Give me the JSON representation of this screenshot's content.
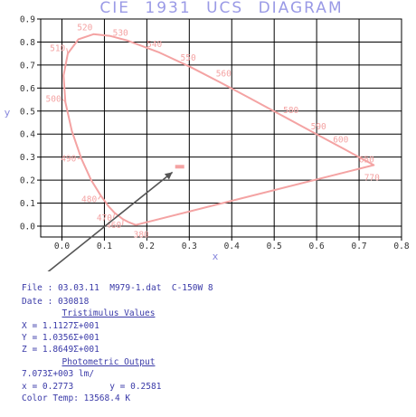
{
  "chart_data": {
    "type": "scatter",
    "title": "CIE  1931  UCS  DIAGRAM",
    "xlabel": "x",
    "ylabel": "y",
    "xlim": [
      -0.05,
      0.8
    ],
    "ylim": [
      -0.05,
      0.9
    ],
    "x_ticks": [
      "0.0",
      "0.1",
      "0.2",
      "0.3",
      "0.4",
      "0.5",
      "0.6",
      "0.7",
      "0.8"
    ],
    "y_ticks": [
      "0.0",
      "0.1",
      "0.2",
      "0.3",
      "0.4",
      "0.5",
      "0.6",
      "0.7",
      "0.8",
      "0.9"
    ],
    "grid": true,
    "colors": {
      "locus": "#f4a3a3",
      "axis_text": "#8888dd",
      "grid": "#000000",
      "arrow": "#555555",
      "point": "#f4a3a3"
    },
    "spectral_locus": [
      {
        "nm": 380,
        "x": 0.1741,
        "y": 0.005
      },
      {
        "nm": 430,
        "x": 0.1703,
        "y": 0.0076
      },
      {
        "nm": 450,
        "x": 0.1566,
        "y": 0.0177
      },
      {
        "nm": 460,
        "x": 0.144,
        "y": 0.0297
      },
      {
        "nm": 470,
        "x": 0.1241,
        "y": 0.0578
      },
      {
        "nm": 475,
        "x": 0.1096,
        "y": 0.0868
      },
      {
        "nm": 480,
        "x": 0.0913,
        "y": 0.1327
      },
      {
        "nm": 485,
        "x": 0.0687,
        "y": 0.2007
      },
      {
        "nm": 490,
        "x": 0.0454,
        "y": 0.295
      },
      {
        "nm": 495,
        "x": 0.0235,
        "y": 0.4127
      },
      {
        "nm": 500,
        "x": 0.0082,
        "y": 0.5384
      },
      {
        "nm": 505,
        "x": 0.0039,
        "y": 0.6548
      },
      {
        "nm": 510,
        "x": 0.0139,
        "y": 0.7502
      },
      {
        "nm": 515,
        "x": 0.0389,
        "y": 0.812
      },
      {
        "nm": 520,
        "x": 0.0743,
        "y": 0.8338
      },
      {
        "nm": 525,
        "x": 0.1142,
        "y": 0.8262
      },
      {
        "nm": 530,
        "x": 0.1547,
        "y": 0.8059
      },
      {
        "nm": 540,
        "x": 0.2296,
        "y": 0.7543
      },
      {
        "nm": 550,
        "x": 0.3016,
        "y": 0.6923
      },
      {
        "nm": 560,
        "x": 0.3731,
        "y": 0.6245
      },
      {
        "nm": 570,
        "x": 0.4441,
        "y": 0.5547
      },
      {
        "nm": 580,
        "x": 0.5125,
        "y": 0.4866
      },
      {
        "nm": 590,
        "x": 0.5752,
        "y": 0.4242
      },
      {
        "nm": 600,
        "x": 0.627,
        "y": 0.3725
      },
      {
        "nm": 610,
        "x": 0.6658,
        "y": 0.334
      },
      {
        "nm": 620,
        "x": 0.6915,
        "y": 0.3083
      },
      {
        "nm": 630,
        "x": 0.7079,
        "y": 0.292
      },
      {
        "nm": 650,
        "x": 0.726,
        "y": 0.274
      },
      {
        "nm": 700,
        "x": 0.7347,
        "y": 0.2653
      },
      {
        "nm": 770,
        "x": 0.7347,
        "y": 0.2653
      }
    ],
    "wavelength_labels": [
      {
        "text": "380",
        "nm": 380
      },
      {
        "text": "460",
        "nm": 460
      },
      {
        "text": "470",
        "nm": 470
      },
      {
        "text": "480",
        "nm": 480
      },
      {
        "text": "490",
        "nm": 490
      },
      {
        "text": "500",
        "nm": 500
      },
      {
        "text": "510",
        "nm": 510
      },
      {
        "text": "520",
        "nm": 520
      },
      {
        "text": "530",
        "nm": 530
      },
      {
        "text": "540",
        "nm": 540
      },
      {
        "text": "550",
        "nm": 550
      },
      {
        "text": "560",
        "nm": 560
      },
      {
        "text": "580",
        "nm": 580
      },
      {
        "text": "590",
        "nm": 590
      },
      {
        "text": "600",
        "nm": 600
      },
      {
        "text": "650",
        "nm": 650
      },
      {
        "text": "770",
        "nm": 770
      }
    ],
    "measured_point": {
      "x": 0.2773,
      "y": 0.2581
    }
  },
  "info": {
    "file_line": "File : 03.03.11  M979-1.dat  C-150W 8",
    "date_line": "Date : 030818",
    "tristimulus_heading": "Tristimulus Values",
    "X_line": "X = 1.1127Σ+001",
    "Y_line": "Y = 1.0356Σ+001",
    "Z_line": "Z = 1.8649Σ+001",
    "photometric_heading": "Photometric Output",
    "lumen_line": "7.073Σ+003 lm/",
    "xy_line": "x = 0.2773       y = 0.2581",
    "color_temp_line": "Color Temp: 13568.4 K"
  }
}
